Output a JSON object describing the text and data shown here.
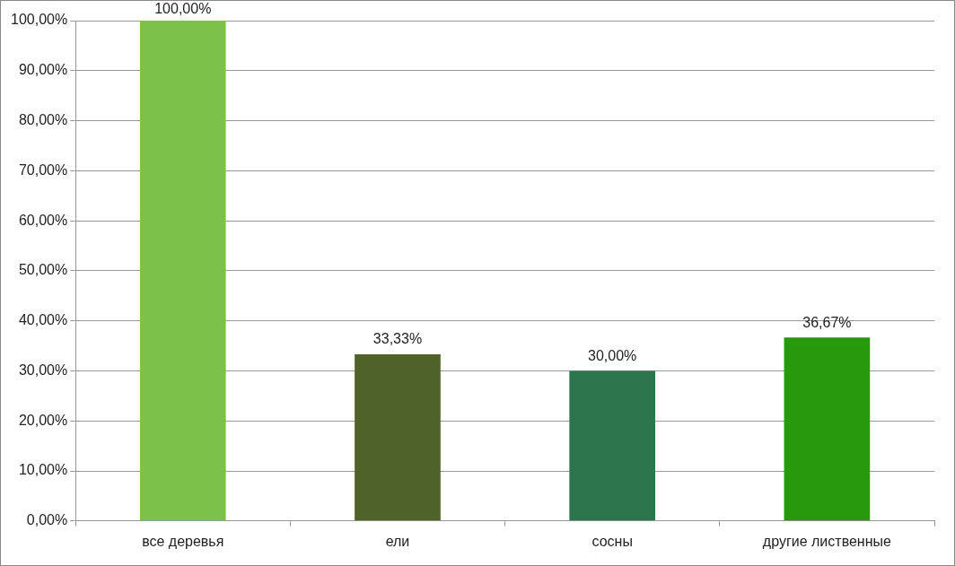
{
  "chart_data": {
    "type": "bar",
    "categories": [
      "все деревья",
      "ели",
      "сосны",
      "другие лиственные"
    ],
    "values": [
      100,
      33.33,
      30,
      36.67
    ],
    "colors": [
      "#7cc24a",
      "#4e622a",
      "#2c744b",
      "#26990d"
    ],
    "value_labels": [
      "100,00%",
      "33,33%",
      "30,00%",
      "36,67%"
    ],
    "ylim": [
      0,
      100
    ],
    "yticks": [
      {
        "value": 0,
        "label": "0,00%"
      },
      {
        "value": 10,
        "label": "10,00%"
      },
      {
        "value": 20,
        "label": "20,00%"
      },
      {
        "value": 30,
        "label": "30,00%"
      },
      {
        "value": 40,
        "label": "40,00%"
      },
      {
        "value": 50,
        "label": "50,00%"
      },
      {
        "value": 60,
        "label": "60,00%"
      },
      {
        "value": 70,
        "label": "70,00%"
      },
      {
        "value": 80,
        "label": "80,00%"
      },
      {
        "value": 90,
        "label": "90,00%"
      },
      {
        "value": 100,
        "label": "100,00%"
      }
    ],
    "grid": "y"
  }
}
